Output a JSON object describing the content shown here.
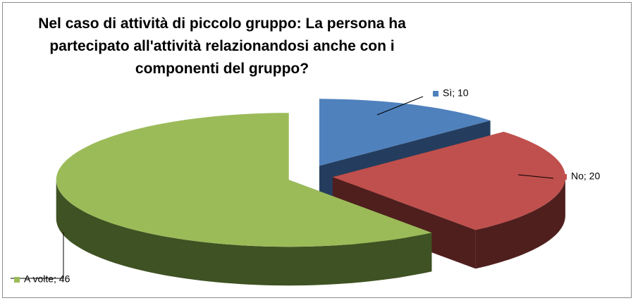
{
  "chart_data": {
    "type": "pie3d",
    "title": "Nel caso di attività di piccolo gruppo: La persona ha partecipato all'attività relazionandosi anche con i componenti del gruppo?",
    "values": [
      10,
      20,
      46
    ],
    "value_labels": [
      "Sì; 10",
      "No; 20",
      "A volte; 46"
    ],
    "colors": [
      "#4f81bd",
      "#c0504d",
      "#9bbb59"
    ],
    "side_colors": [
      "#243d5e",
      "#4f1f1e",
      "#3f5223"
    ]
  }
}
